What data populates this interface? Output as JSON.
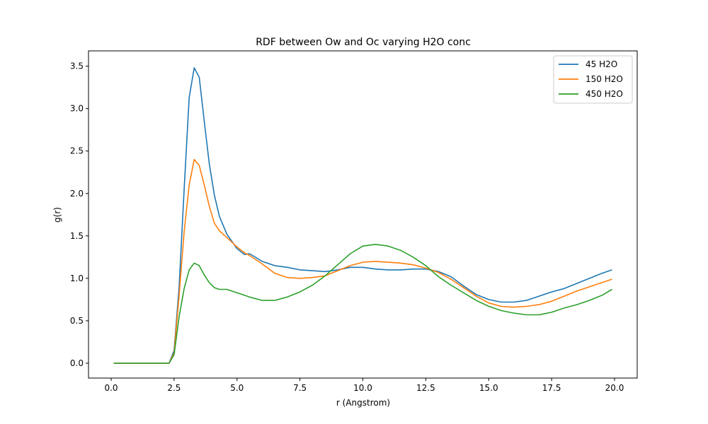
{
  "chart_data": {
    "type": "line",
    "title": "RDF between Ow and Oc varying H2O conc",
    "xlabel": "r (Angstrom)",
    "ylabel": "g(r)",
    "xlim": [
      -0.9,
      20.9
    ],
    "ylim": [
      -0.175,
      3.68
    ],
    "xticks": [
      0.0,
      2.5,
      5.0,
      7.5,
      10.0,
      12.5,
      15.0,
      17.5,
      20.0
    ],
    "xtick_labels": [
      "0.0",
      "2.5",
      "5.0",
      "7.5",
      "10.0",
      "12.5",
      "15.0",
      "17.5",
      "20.0"
    ],
    "yticks": [
      0.0,
      0.5,
      1.0,
      1.5,
      2.0,
      2.5,
      3.0,
      3.5
    ],
    "ytick_labels": [
      "0.0",
      "0.5",
      "1.0",
      "1.5",
      "2.0",
      "2.5",
      "3.0",
      "3.5"
    ],
    "grid": false,
    "legend_position": "top-right",
    "series": [
      {
        "name": "45 H2O",
        "color": "#1f77b4",
        "x": [
          0.1,
          0.5,
          1.0,
          1.5,
          2.0,
          2.3,
          2.5,
          2.7,
          2.9,
          3.1,
          3.3,
          3.5,
          3.7,
          3.9,
          4.1,
          4.3,
          4.6,
          5.0,
          5.3,
          5.5,
          6.0,
          6.5,
          7.0,
          7.5,
          8.0,
          8.5,
          9.0,
          9.5,
          10.0,
          10.5,
          11.0,
          11.5,
          12.0,
          12.5,
          13.0,
          13.5,
          14.0,
          14.5,
          15.0,
          15.5,
          16.0,
          16.5,
          17.0,
          17.5,
          18.0,
          18.5,
          19.0,
          19.5,
          19.9
        ],
        "y": [
          0.0,
          0.0,
          0.0,
          0.0,
          0.0,
          0.0,
          0.15,
          0.9,
          2.05,
          3.13,
          3.48,
          3.37,
          2.85,
          2.35,
          1.98,
          1.73,
          1.52,
          1.35,
          1.28,
          1.29,
          1.2,
          1.15,
          1.13,
          1.1,
          1.09,
          1.08,
          1.1,
          1.13,
          1.13,
          1.11,
          1.1,
          1.1,
          1.11,
          1.11,
          1.08,
          1.02,
          0.91,
          0.81,
          0.75,
          0.72,
          0.72,
          0.74,
          0.79,
          0.84,
          0.88,
          0.94,
          1.0,
          1.06,
          1.1
        ]
      },
      {
        "name": "150 H2O",
        "color": "#ff7f0e",
        "x": [
          0.1,
          0.5,
          1.0,
          1.5,
          2.0,
          2.3,
          2.5,
          2.7,
          2.9,
          3.1,
          3.3,
          3.5,
          3.7,
          3.9,
          4.1,
          4.3,
          4.6,
          5.0,
          5.3,
          5.5,
          6.0,
          6.5,
          7.0,
          7.5,
          8.0,
          8.5,
          9.0,
          9.5,
          10.0,
          10.5,
          11.0,
          11.5,
          12.0,
          12.5,
          13.0,
          13.5,
          14.0,
          14.5,
          15.0,
          15.5,
          16.0,
          16.5,
          17.0,
          17.5,
          18.0,
          18.5,
          19.0,
          19.5,
          19.9
        ],
        "y": [
          0.0,
          0.0,
          0.0,
          0.0,
          0.0,
          0.0,
          0.12,
          0.8,
          1.55,
          2.1,
          2.4,
          2.33,
          2.1,
          1.85,
          1.65,
          1.56,
          1.48,
          1.37,
          1.3,
          1.27,
          1.17,
          1.06,
          1.01,
          1.0,
          1.01,
          1.03,
          1.09,
          1.15,
          1.19,
          1.2,
          1.19,
          1.18,
          1.16,
          1.12,
          1.07,
          0.99,
          0.89,
          0.79,
          0.71,
          0.67,
          0.66,
          0.67,
          0.69,
          0.73,
          0.79,
          0.85,
          0.9,
          0.95,
          0.99
        ]
      },
      {
        "name": "450 H2O",
        "color": "#2ca02c",
        "x": [
          0.1,
          0.5,
          1.0,
          1.5,
          2.0,
          2.3,
          2.5,
          2.7,
          2.9,
          3.1,
          3.3,
          3.5,
          3.7,
          3.9,
          4.1,
          4.3,
          4.6,
          5.0,
          5.5,
          6.0,
          6.5,
          7.0,
          7.5,
          8.0,
          8.5,
          9.0,
          9.5,
          10.0,
          10.5,
          11.0,
          11.5,
          12.0,
          12.5,
          13.0,
          13.5,
          14.0,
          14.5,
          15.0,
          15.5,
          16.0,
          16.5,
          17.0,
          17.5,
          18.0,
          18.5,
          19.0,
          19.5,
          19.9
        ],
        "y": [
          0.0,
          0.0,
          0.0,
          0.0,
          0.0,
          0.0,
          0.1,
          0.55,
          0.88,
          1.1,
          1.18,
          1.15,
          1.04,
          0.95,
          0.89,
          0.87,
          0.87,
          0.83,
          0.78,
          0.74,
          0.74,
          0.78,
          0.84,
          0.92,
          1.03,
          1.16,
          1.29,
          1.38,
          1.4,
          1.38,
          1.33,
          1.25,
          1.15,
          1.02,
          0.92,
          0.83,
          0.74,
          0.67,
          0.62,
          0.59,
          0.57,
          0.57,
          0.6,
          0.65,
          0.69,
          0.74,
          0.8,
          0.87
        ]
      }
    ]
  }
}
